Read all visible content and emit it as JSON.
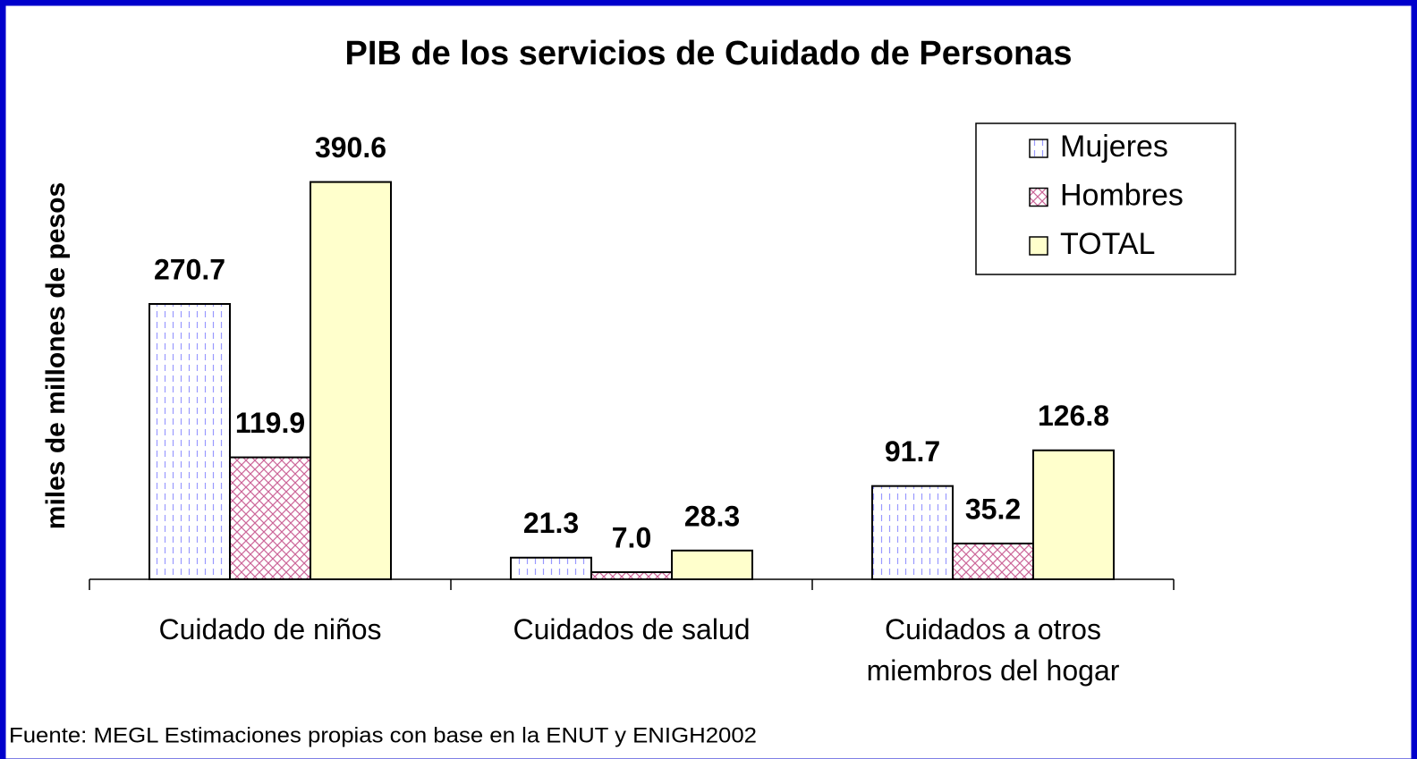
{
  "chart_data": {
    "type": "bar",
    "title": "PIB de los servicios de Cuidado de Personas",
    "y_label": "miles de millones de pesos",
    "categories": [
      "Cuidado de niños",
      "Cuidados de salud",
      "Cuidados a otros miembros del hogar"
    ],
    "series": [
      {
        "name": "Mujeres",
        "color": "#9999ff",
        "pattern": "dashed-vertical",
        "values": [
          270.7,
          21.3,
          91.7
        ],
        "value_labels": [
          "270.7",
          "21.3",
          "91.7"
        ]
      },
      {
        "name": "Hombres",
        "color": "#cc6699",
        "pattern": "crosshatch",
        "values": [
          119.9,
          7.0,
          35.2
        ],
        "value_labels": [
          "119.9",
          "7.0",
          "35.2"
        ]
      },
      {
        "name": "TOTAL",
        "color": "#ffffcc",
        "values": [
          390.6,
          28.3,
          126.8
        ],
        "value_labels": [
          "390.6",
          "28.3",
          "126.8"
        ]
      }
    ],
    "ylim": [
      0,
      450
    ],
    "legend": "top-right",
    "source": "Fuente: MEGL Estimaciones propias con base en la ENUT y ENIGH2002"
  }
}
